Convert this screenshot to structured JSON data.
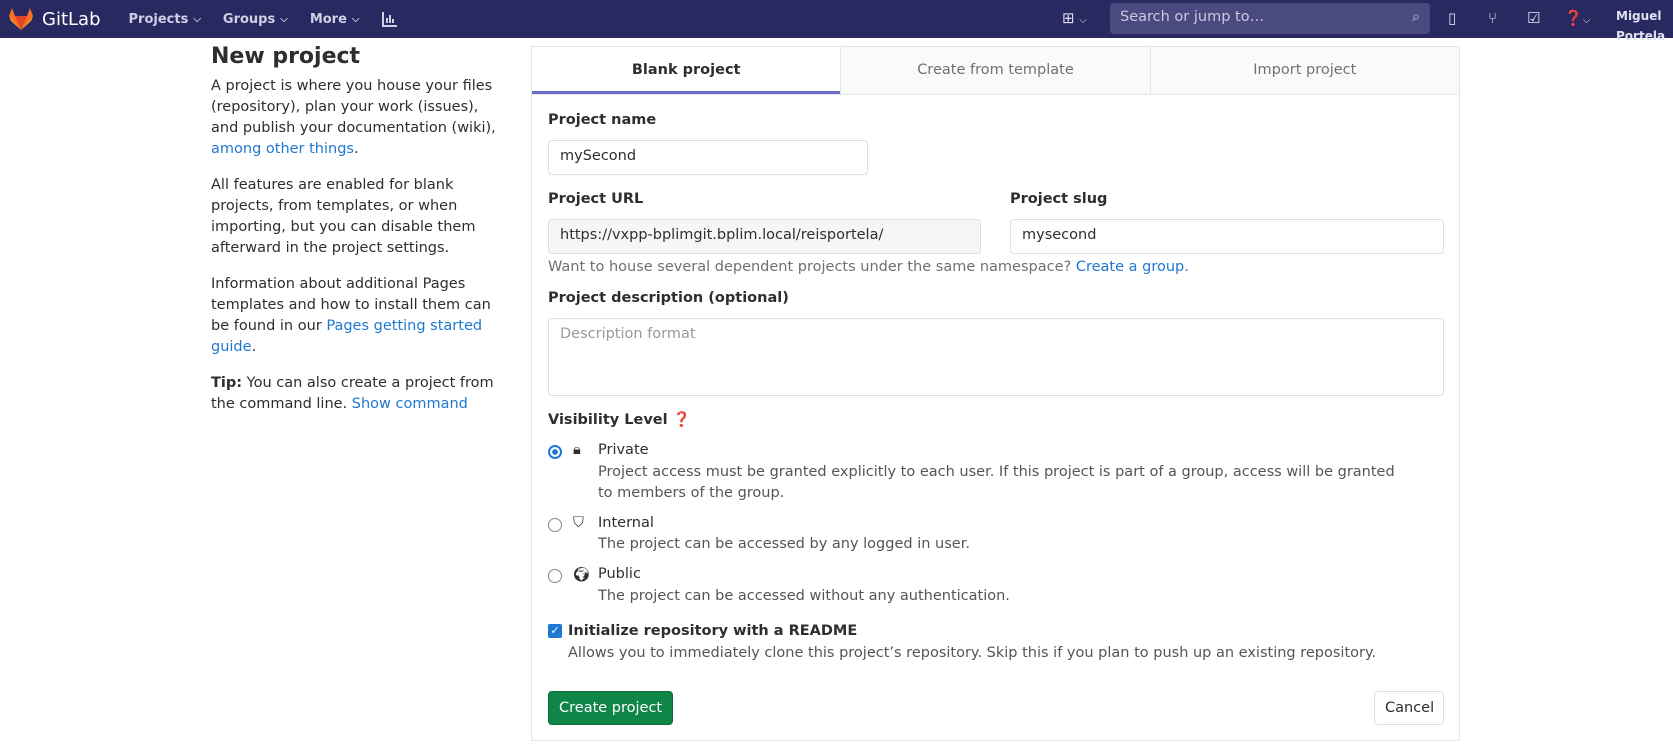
{
  "nav": {
    "brand": "GitLab",
    "items": [
      {
        "label": "Projects"
      },
      {
        "label": "Groups"
      },
      {
        "label": "More"
      }
    ],
    "search_placeholder": "Search or jump to…",
    "user": "Miguel Portela",
    "icons": [
      "plus-square-icon",
      "issues-icon",
      "merge-request-icon",
      "todo-icon",
      "help-icon",
      "chart-icon"
    ]
  },
  "sidebar": {
    "title": "New project",
    "p1": "A project is where you house your files (repository), plan your work (issues), and publish your documentation (wiki), ",
    "p1_link": "among other things",
    "p1_end": ".",
    "p2": "All features are enabled for blank projects, from templates, or when importing, but you can disable them afterward in the project settings.",
    "p3": "Information about additional Pages templates and how to install them can be found in our ",
    "p3_link": "Pages getting started guide",
    "p3_end": ".",
    "tip_bold": "Tip:",
    "tip": " You can also create a project from the command line. ",
    "tip_link": "Show command"
  },
  "tabs": [
    {
      "label": "Blank project",
      "active": true
    },
    {
      "label": "Create from template"
    },
    {
      "label": "Import project"
    }
  ],
  "form": {
    "name_label": "Project name",
    "name_value": "mySecond",
    "url_label": "Project URL",
    "url_value": "https://vxpp-bplimgit.bplim.local/reisportela/",
    "slug_label": "Project slug",
    "slug_value": "mysecond",
    "ns_help": "Want to house several dependent projects under the same namespace? ",
    "ns_link": "Create a group.",
    "desc_label": "Project description (optional)",
    "desc_placeholder": "Description format",
    "visibility_label": "Visibility Level",
    "visibility": [
      {
        "title": "Private",
        "desc": "Project access must be granted explicitly to each user. If this project is part of a group, access will be granted to members of the group.",
        "selected": true,
        "icon": "lock-icon"
      },
      {
        "title": "Internal",
        "desc": "The project can be accessed by any logged in user.",
        "selected": false,
        "icon": "shield-icon"
      },
      {
        "title": "Public",
        "desc": "The project can be accessed without any authentication.",
        "selected": false,
        "icon": "globe-icon"
      }
    ],
    "readme_label": "Initialize repository with a README",
    "readme_checked": true,
    "readme_desc": "Allows you to immediately clone this project’s repository. Skip this if you plan to push up an existing repository.",
    "create_label": "Create project",
    "cancel_label": "Cancel"
  },
  "colors": {
    "nav": "#292961",
    "link": "#1f78d1",
    "primary": "#108548",
    "tab_active": "#6b6bc8"
  }
}
